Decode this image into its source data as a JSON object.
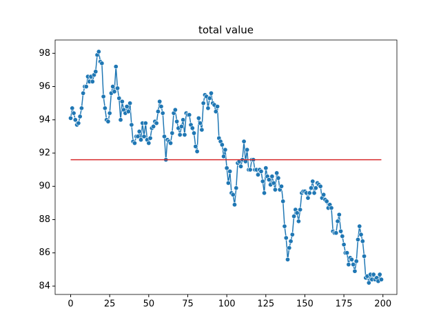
{
  "chart_data": {
    "type": "line",
    "title": "total value",
    "xlim": [
      -9.95,
      208.95
    ],
    "ylim": [
      83.5,
      98.8
    ],
    "xticks": [
      0,
      25,
      50,
      75,
      100,
      125,
      150,
      175,
      200
    ],
    "yticks": [
      84,
      86,
      88,
      90,
      92,
      94,
      96,
      98
    ],
    "series": [
      {
        "color": "#1f77b4",
        "marker": "o",
        "x": [
          0,
          1,
          2,
          3,
          4,
          5,
          6,
          7,
          8,
          9,
          10,
          11,
          12,
          13,
          14,
          15,
          16,
          17,
          18,
          19,
          20,
          21,
          22,
          23,
          24,
          25,
          26,
          27,
          28,
          29,
          30,
          31,
          32,
          33,
          34,
          35,
          36,
          37,
          38,
          39,
          40,
          41,
          42,
          43,
          44,
          45,
          46,
          47,
          48,
          49,
          50,
          51,
          52,
          53,
          54,
          55,
          56,
          57,
          58,
          59,
          60,
          61,
          62,
          63,
          64,
          65,
          66,
          67,
          68,
          69,
          70,
          71,
          72,
          73,
          74,
          75,
          76,
          77,
          78,
          79,
          80,
          81,
          82,
          83,
          84,
          85,
          86,
          87,
          88,
          89,
          90,
          91,
          92,
          93,
          94,
          95,
          96,
          97,
          98,
          99,
          100,
          101,
          102,
          103,
          104,
          105,
          106,
          107,
          108,
          109,
          110,
          111,
          112,
          113,
          114,
          115,
          116,
          117,
          118,
          119,
          120,
          121,
          122,
          123,
          124,
          125,
          126,
          127,
          128,
          129,
          130,
          131,
          132,
          133,
          134,
          135,
          136,
          137,
          138,
          139,
          140,
          141,
          142,
          143,
          144,
          145,
          146,
          147,
          148,
          149,
          150,
          151,
          152,
          153,
          154,
          155,
          156,
          157,
          158,
          159,
          160,
          161,
          162,
          163,
          164,
          165,
          166,
          167,
          168,
          169,
          170,
          171,
          172,
          173,
          174,
          175,
          176,
          177,
          178,
          179,
          180,
          181,
          182,
          183,
          184,
          185,
          186,
          187,
          188,
          189,
          190,
          191,
          192,
          193,
          194,
          195,
          196,
          197,
          198,
          199
        ],
        "values": [
          94.1,
          94.7,
          94.4,
          94.0,
          93.7,
          93.8,
          94.2,
          94.7,
          95.6,
          96.0,
          96.0,
          96.6,
          96.3,
          96.6,
          96.3,
          96.7,
          96.9,
          97.9,
          98.1,
          97.5,
          97.4,
          95.4,
          94.7,
          94.0,
          93.9,
          94.4,
          95.6,
          96.0,
          95.7,
          97.2,
          95.9,
          95.3,
          94.0,
          95.1,
          94.6,
          94.4,
          94.8,
          94.5,
          95.0,
          93.7,
          92.7,
          92.6,
          93.0,
          93.0,
          93.3,
          92.8,
          93.8,
          93.0,
          93.8,
          92.8,
          92.6,
          92.9,
          93.5,
          93.6,
          93.9,
          93.8,
          94.5,
          95.1,
          94.8,
          94.4,
          93.0,
          91.6,
          92.8,
          92.7,
          92.6,
          93.2,
          94.4,
          94.6,
          93.9,
          93.5,
          93.1,
          93.6,
          94.0,
          93.1,
          94.4,
          94.3,
          94.3,
          93.7,
          93.5,
          93.2,
          92.4,
          92.1,
          94.1,
          93.8,
          93.4,
          95.0,
          95.5,
          95.4,
          94.7,
          95.3,
          95.6,
          95.0,
          94.9,
          94.5,
          94.8,
          92.9,
          92.7,
          92.5,
          91.8,
          92.2,
          91.1,
          90.2,
          90.9,
          89.6,
          89.5,
          88.9,
          89.9,
          91.4,
          91.5,
          91.2,
          91.6,
          92.7,
          91.5,
          92.2,
          91.0,
          91.0,
          91.6,
          91.6,
          91.0,
          91.0,
          90.7,
          91.0,
          90.9,
          90.3,
          89.6,
          91.1,
          90.6,
          90.4,
          90.1,
          90.6,
          90.2,
          89.8,
          90.8,
          90.5,
          89.8,
          90.0,
          89.1,
          87.6,
          86.9,
          85.6,
          86.3,
          86.7,
          87.1,
          88.2,
          88.6,
          88.4,
          87.9,
          88.6,
          89.6,
          89.7,
          89.7,
          89.6,
          89.3,
          89.6,
          89.9,
          90.3,
          89.6,
          89.9,
          90.2,
          90.1,
          90.0,
          89.3,
          89.5,
          89.2,
          89.1,
          88.7,
          88.9,
          88.7,
          87.3,
          87.2,
          87.2,
          87.9,
          88.3,
          87.3,
          87.0,
          86.5,
          86.0,
          86.0,
          85.3,
          85.7,
          85.6,
          85.3,
          84.9,
          85.5,
          86.8,
          87.6,
          87.1,
          86.7,
          85.8,
          84.5,
          84.6,
          84.2,
          84.7,
          84.4,
          84.7,
          84.4,
          84.5,
          84.3,
          84.7,
          84.4
        ]
      },
      {
        "color": "#d62728",
        "x": [
          0,
          199
        ],
        "values": [
          91.6,
          91.6
        ]
      }
    ]
  }
}
